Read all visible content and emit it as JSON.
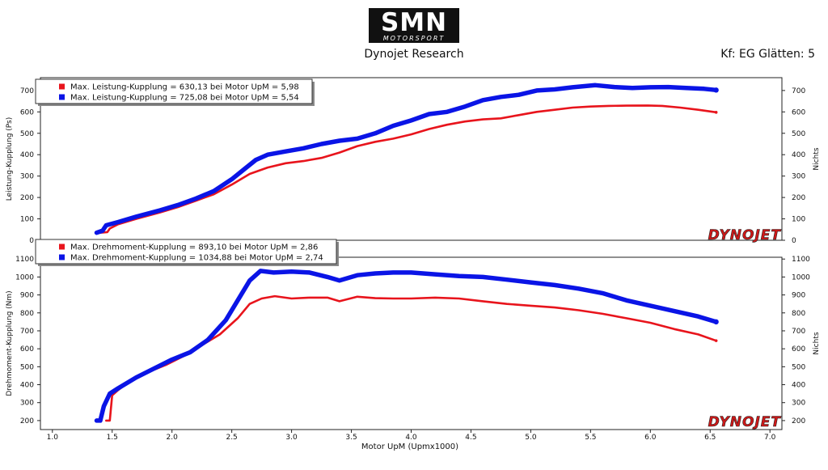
{
  "logo": {
    "text": "SMN",
    "subtext": "MOTORSPORT"
  },
  "header": {
    "subtitle": "Dynojet Research",
    "smoothing": "Kf: EG Glätten: 5"
  },
  "watermark": "DYNOJET",
  "colors": {
    "run1": "#e8141c",
    "run2": "#0a14e6",
    "watermark": "#d01818"
  },
  "chart_data": [
    {
      "type": "line",
      "ylabel": "Leistung-Kupplung (Ps)",
      "ylabel_right": "Nichts",
      "xlim": [
        0.9,
        7.1
      ],
      "ylim": [
        0,
        760
      ],
      "yticks": [
        0,
        100,
        200,
        300,
        400,
        500,
        600,
        700
      ],
      "legend": [
        "Max. Leistung-Kupplung = 630,13 bei Motor UpM = 5,98",
        "Max. Leistung-Kupplung = 725,08 bei Motor UpM = 5,54"
      ],
      "series": [
        {
          "color": "#e8141c",
          "x": [
            1.4,
            1.46,
            1.48,
            1.55,
            1.7,
            1.9,
            2.05,
            2.2,
            2.35,
            2.5,
            2.65,
            2.8,
            2.95,
            3.1,
            3.25,
            3.4,
            3.55,
            3.7,
            3.85,
            4.0,
            4.15,
            4.3,
            4.45,
            4.6,
            4.75,
            4.9,
            5.05,
            5.2,
            5.35,
            5.5,
            5.65,
            5.8,
            5.98,
            6.1,
            6.25,
            6.4,
            6.55
          ],
          "y": [
            35,
            38,
            55,
            75,
            100,
            130,
            155,
            185,
            215,
            260,
            310,
            340,
            360,
            370,
            385,
            410,
            440,
            460,
            475,
            495,
            520,
            540,
            555,
            565,
            570,
            585,
            600,
            610,
            620,
            625,
            628,
            629,
            630,
            628,
            620,
            610,
            598
          ]
        },
        {
          "color": "#0a14e6",
          "x": [
            1.37,
            1.42,
            1.45,
            1.55,
            1.7,
            1.9,
            2.05,
            2.2,
            2.35,
            2.5,
            2.6,
            2.7,
            2.8,
            2.95,
            3.1,
            3.25,
            3.4,
            3.55,
            3.7,
            3.85,
            4.0,
            4.15,
            4.3,
            4.45,
            4.6,
            4.75,
            4.9,
            5.05,
            5.2,
            5.35,
            5.54,
            5.7,
            5.85,
            6.0,
            6.15,
            6.3,
            6.45,
            6.55
          ],
          "y": [
            35,
            45,
            70,
            85,
            110,
            140,
            165,
            195,
            230,
            285,
            330,
            375,
            400,
            415,
            430,
            450,
            465,
            475,
            500,
            535,
            560,
            590,
            600,
            625,
            655,
            670,
            680,
            700,
            705,
            715,
            725,
            716,
            712,
            715,
            716,
            712,
            708,
            702
          ]
        }
      ]
    },
    {
      "type": "line",
      "xlabel": "Motor UpM (Upmx1000)",
      "ylabel": "Drehmoment-Kupplung (Nm)",
      "ylabel_right": "Nichts",
      "xlim": [
        0.9,
        7.1
      ],
      "ylim": [
        150,
        1110
      ],
      "yticks": [
        200,
        300,
        400,
        500,
        600,
        700,
        800,
        900,
        1000,
        1100
      ],
      "xticks": [
        "1.0",
        "1.5",
        "2.0",
        "2.5",
        "3.0",
        "3.5",
        "4.0",
        "4.5",
        "5.0",
        "5.5",
        "6.0",
        "6.5",
        "7.0"
      ],
      "legend": [
        "Max. Drehmoment-Kupplung = 893,10 bei Motor UpM = 2,86",
        "Max. Drehmoment-Kupplung = 1034,88 bei Motor UpM = 2,74"
      ],
      "series": [
        {
          "color": "#e8141c",
          "x": [
            1.45,
            1.48,
            1.5,
            1.55,
            1.65,
            1.8,
            1.95,
            2.1,
            2.25,
            2.4,
            2.55,
            2.65,
            2.75,
            2.86,
            3.0,
            3.15,
            3.3,
            3.4,
            3.55,
            3.7,
            3.85,
            4.0,
            4.2,
            4.4,
            4.6,
            4.8,
            5.0,
            5.2,
            5.4,
            5.6,
            5.8,
            6.0,
            6.2,
            6.4,
            6.55
          ],
          "y": [
            200,
            200,
            340,
            370,
            420,
            470,
            510,
            560,
            620,
            680,
            770,
            850,
            880,
            893,
            880,
            885,
            885,
            865,
            890,
            882,
            880,
            880,
            885,
            880,
            865,
            850,
            840,
            830,
            815,
            795,
            770,
            745,
            710,
            680,
            645
          ]
        },
        {
          "color": "#0a14e6",
          "x": [
            1.37,
            1.4,
            1.43,
            1.48,
            1.55,
            1.7,
            1.85,
            2.0,
            2.15,
            2.3,
            2.45,
            2.55,
            2.65,
            2.74,
            2.85,
            3.0,
            3.15,
            3.3,
            3.4,
            3.55,
            3.7,
            3.85,
            4.0,
            4.2,
            4.4,
            4.6,
            4.8,
            5.0,
            5.2,
            5.4,
            5.6,
            5.8,
            6.0,
            6.2,
            6.4,
            6.55
          ],
          "y": [
            200,
            200,
            280,
            350,
            380,
            440,
            490,
            540,
            580,
            650,
            760,
            870,
            980,
            1034,
            1025,
            1030,
            1025,
            1000,
            980,
            1010,
            1020,
            1025,
            1025,
            1015,
            1005,
            1000,
            985,
            970,
            955,
            935,
            910,
            870,
            840,
            810,
            780,
            750
          ]
        }
      ]
    }
  ]
}
